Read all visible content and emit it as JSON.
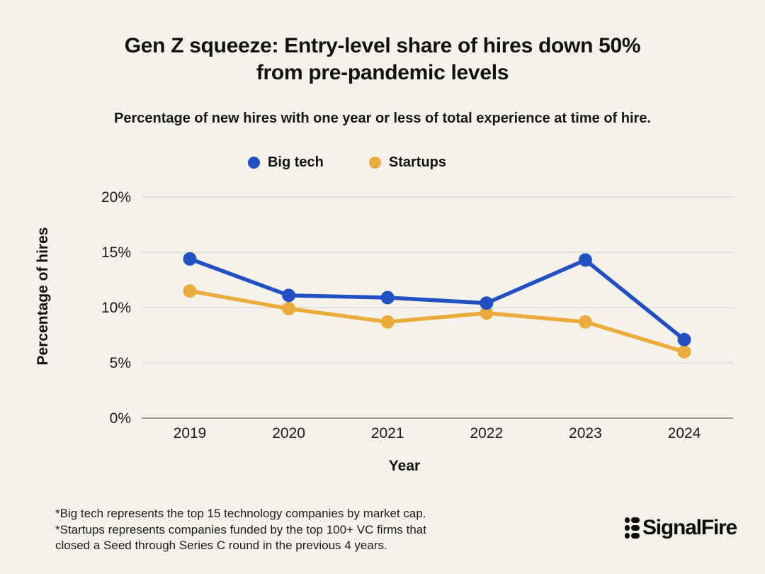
{
  "page": {
    "background": "#F5F2EC",
    "title_line1": "Gen Z squeeze: Entry-level share of hires down 50%",
    "title_line2": "from pre-pandemic levels",
    "subtitle": "Percentage of new hires with one year or less of total experience at time of hire."
  },
  "legend": {
    "items": [
      {
        "label": "Big tech",
        "color": "#2150C4"
      },
      {
        "label": "Startups",
        "color": "#ECAC3B"
      }
    ]
  },
  "chart_data": {
    "type": "line",
    "title": "Gen Z squeeze: Entry-level share of hires down 50% from pre-pandemic levels",
    "subtitle": "Percentage of new hires with one year or less of total experience at time of hire.",
    "x": [
      "2019",
      "2020",
      "2021",
      "2022",
      "2023",
      "2024"
    ],
    "series": [
      {
        "name": "Big tech",
        "color": "#2150C4",
        "values": [
          14.4,
          11.1,
          10.9,
          10.4,
          14.3,
          7.1
        ]
      },
      {
        "name": "Startups",
        "color": "#ECAC3B",
        "values": [
          11.5,
          9.9,
          8.7,
          9.5,
          8.7,
          6.0
        ]
      }
    ],
    "xlabel": "Year",
    "ylabel": "Percentage of hires",
    "ylim": [
      0,
      20
    ],
    "yticks": [
      0,
      5,
      10,
      15,
      20
    ],
    "ytick_suffix": "%",
    "grid": true,
    "gridline_color": "#DAD7D1",
    "axisline_color": "#85827C",
    "legend_position": "top-center"
  },
  "footnote": {
    "line1": "*Big tech represents the top 15 technology companies by market cap.",
    "line2": "*Startups represents companies funded by the top 100+ VC firms that",
    "line3": "closed a Seed through Series C round in the previous 4 years."
  },
  "logo": {
    "text": "SignalFire"
  }
}
